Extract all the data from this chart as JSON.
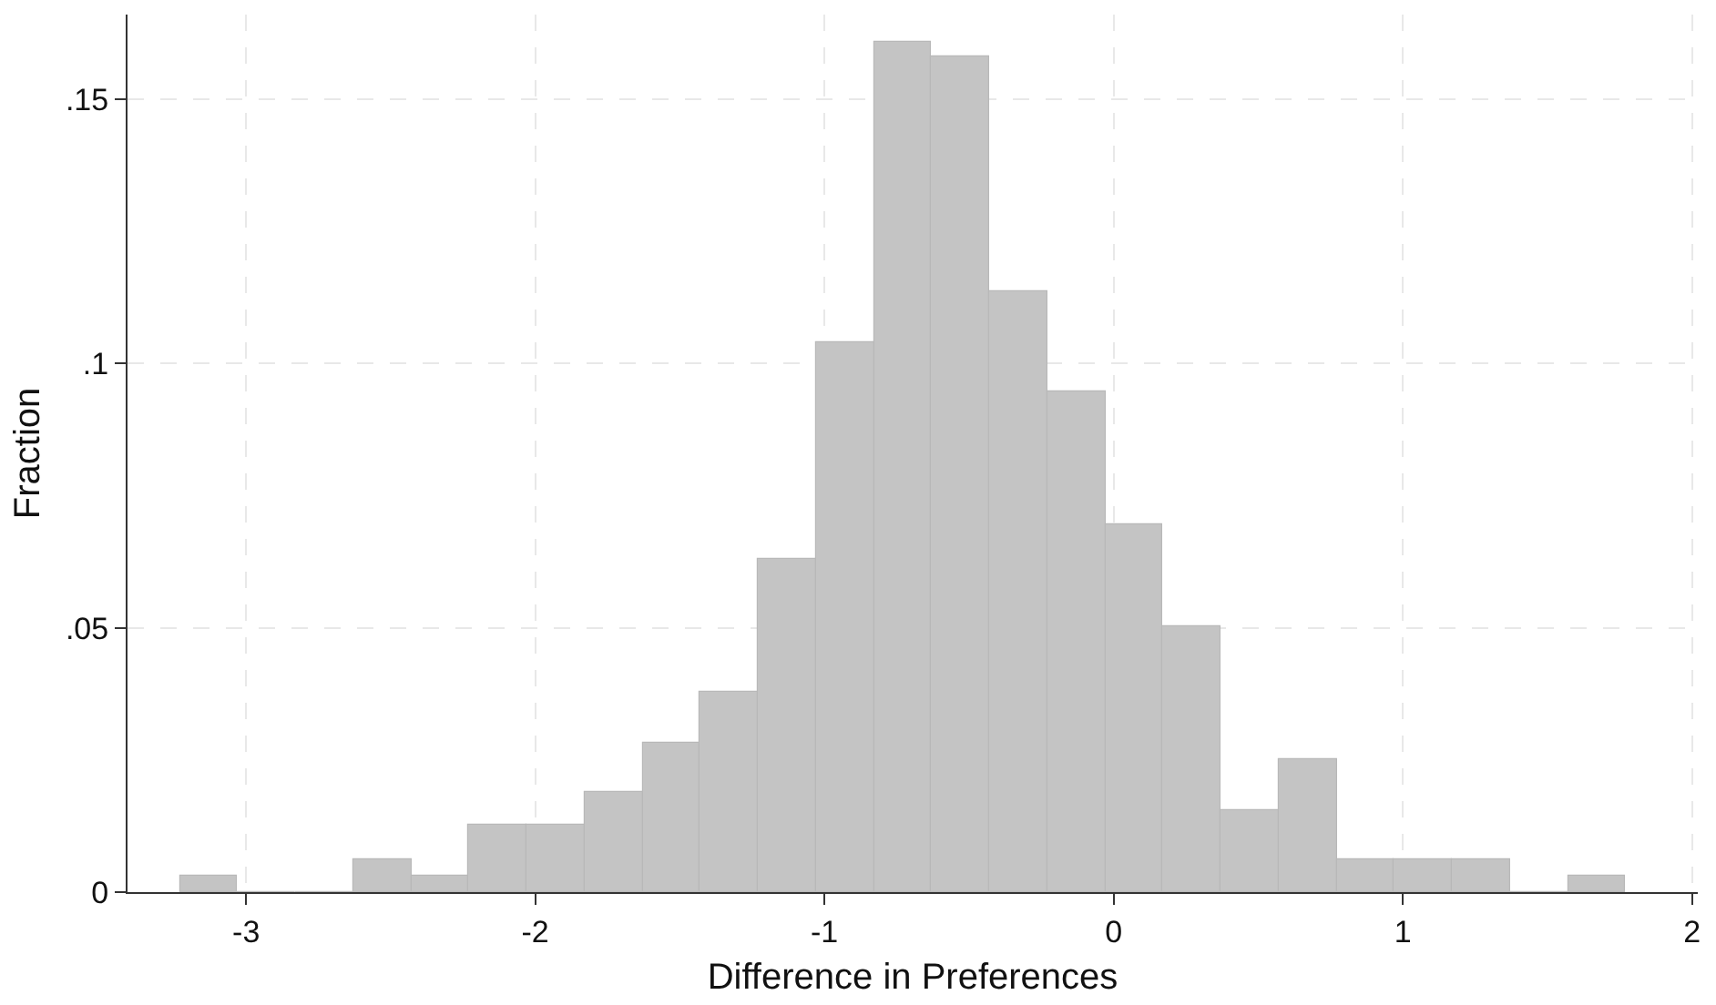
{
  "chart_data": {
    "type": "histogram",
    "xlabel": "Difference in Preferences",
    "ylabel": "Fraction",
    "bins": [
      -3.23,
      -3.03,
      -2.83,
      -2.63,
      -2.43,
      -2.23,
      -2.03,
      -1.83,
      -1.63,
      -1.43,
      -1.23,
      -1.03,
      -0.83,
      -0.63,
      -0.43,
      -0.23,
      -0.03,
      0.17,
      0.37,
      0.57,
      0.77,
      0.97,
      1.17,
      1.37,
      1.57,
      1.77
    ],
    "values": [
      0.003,
      0,
      0,
      0.0063,
      0.003,
      0.0126,
      0.0126,
      0.019,
      0.0284,
      0.038,
      0.063,
      0.104,
      0.161,
      0.158,
      0.1137,
      0.0946,
      0.0694,
      0.0504,
      0.0156,
      0.0252,
      0.0063,
      0.0063,
      0.0063,
      0,
      0.003
    ],
    "color": "#c4c4c4",
    "xlim": [
      -3.41,
      2.02
    ],
    "ylim": [
      0,
      0.166
    ],
    "xticks": [
      -3,
      -2,
      -1,
      0,
      1,
      2
    ],
    "yticks": [
      0,
      {
        "value": 0.05,
        "label": ".05"
      },
      {
        "value": 0.1,
        "label": ".1"
      },
      {
        "value": 0.15,
        "label": ".15"
      }
    ],
    "grid": true
  }
}
